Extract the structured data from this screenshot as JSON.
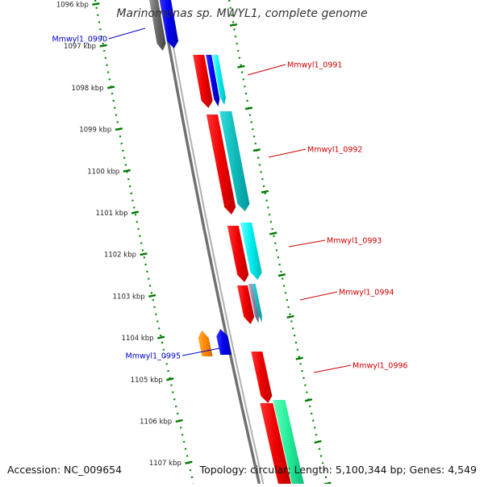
{
  "title": "Marinomonas sp. MWYL1, complete genome",
  "accession": "Accession: NC_009654",
  "topology": "Topology: circular; Length: 5,100,344 bp; Genes: 4,549",
  "ticks": [
    "1096 kbp",
    "1097 kbp",
    "1098 kbp",
    "1099 kbp",
    "1100 kbp",
    "1101 kbp",
    "1102 kbp",
    "1103 kbp",
    "1104 kbp",
    "1105 kbp",
    "1106 kbp",
    "1107 kbp"
  ],
  "gene_labels": [
    {
      "name": "Mmwyl1_0990",
      "strand": "reverse",
      "color": "#0000cc"
    },
    {
      "name": "Mmwyl1_0991",
      "strand": "forward",
      "color": "#cc0000"
    },
    {
      "name": "Mmwyl1_0992",
      "strand": "forward",
      "color": "#cc0000"
    },
    {
      "name": "Mmwyl1_0993",
      "strand": "forward",
      "color": "#cc0000"
    },
    {
      "name": "Mmwyl1_0994",
      "strand": "forward",
      "color": "#cc0000"
    },
    {
      "name": "Mmwyl1_0995",
      "strand": "reverse",
      "color": "#0000cc"
    },
    {
      "name": "Mmwyl1_0996",
      "strand": "forward",
      "color": "#cc0000"
    }
  ],
  "colors": {
    "backbone": "#808080",
    "tick": "#007700",
    "cds_forward": "#ee0000",
    "cds_reverse": "#0000ee",
    "panel_border": "#008800"
  }
}
